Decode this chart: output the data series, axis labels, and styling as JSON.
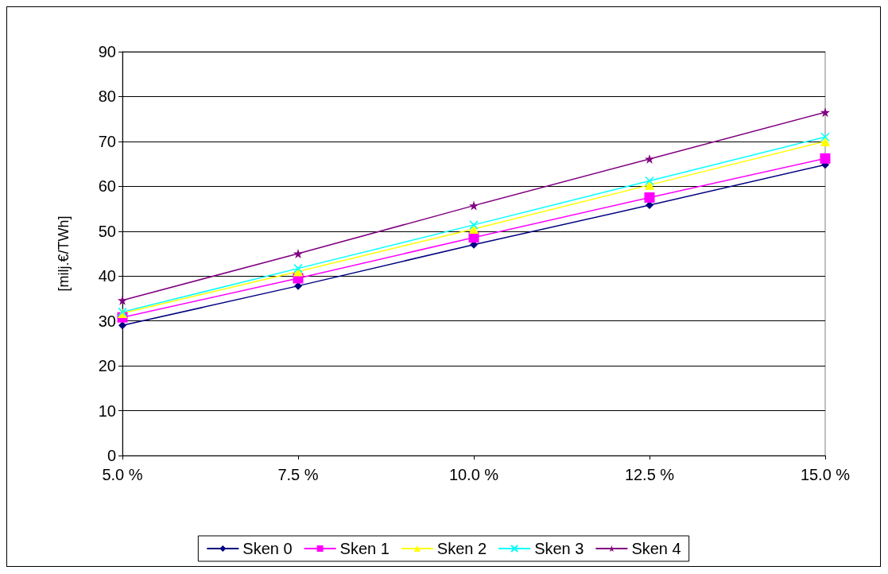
{
  "chart_data": {
    "type": "line",
    "ylabel": "[milj.€/TWh]",
    "categories": [
      "5.0 %",
      "7.5 %",
      "10.0 %",
      "12.5 %",
      "15.0 %"
    ],
    "ylim": [
      0,
      90
    ],
    "yticks": [
      0,
      10,
      20,
      30,
      40,
      50,
      60,
      70,
      80,
      90
    ],
    "grid": "y",
    "legend": "bottom",
    "line_style": "solid",
    "series": [
      {
        "name": "Sken 0",
        "color": "#000080",
        "marker": "diamond",
        "values": [
          29,
          37.8,
          47,
          55.8,
          64.8
        ]
      },
      {
        "name": "Sken 1",
        "color": "#ff00ff",
        "marker": "square",
        "values": [
          30.8,
          39.5,
          48.6,
          57.5,
          66.2
        ]
      },
      {
        "name": "Sken 2",
        "color": "#ffff00",
        "marker": "triangle",
        "values": [
          31.7,
          41,
          50.5,
          60.3,
          70
        ]
      },
      {
        "name": "Sken 3",
        "color": "#00ffff",
        "marker": "cross",
        "values": [
          32,
          41.7,
          51.4,
          61.2,
          71
        ]
      },
      {
        "name": "Sken 4",
        "color": "#800080",
        "marker": "star",
        "values": [
          34.6,
          45,
          55.7,
          66.1,
          76.5
        ]
      }
    ]
  }
}
